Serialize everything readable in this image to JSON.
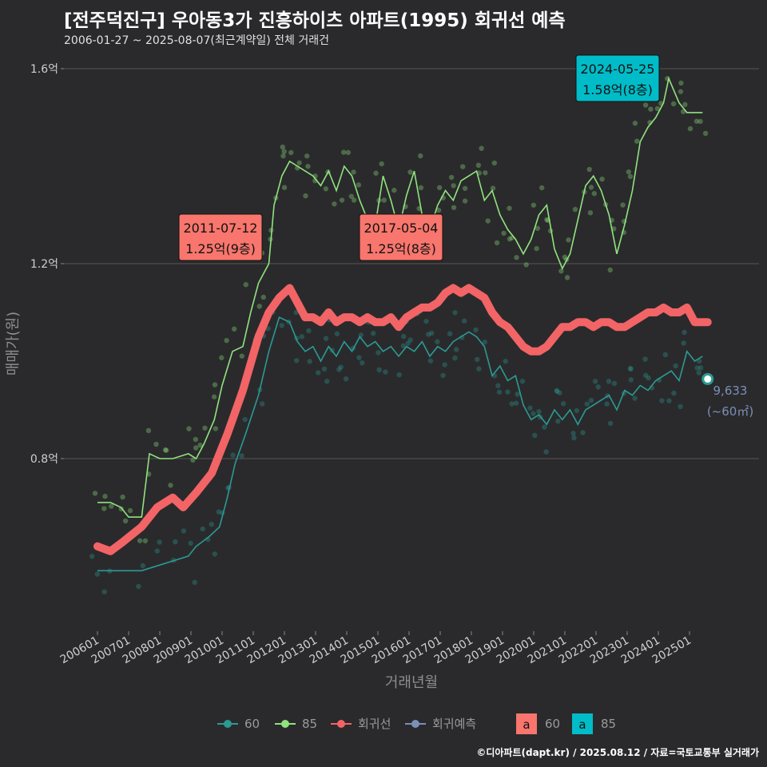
{
  "title": "[전주덕진구] 우아동3가 진흥하이츠 아파트(1995) 회귀선 예측",
  "subtitle": "2006-01-27 ~ 2025-08-07(최근계약일) 전체 거래건",
  "credit": "©디아파트(dapt.kr) / 2025.08.12 / 자료=국토교통부 실거래가",
  "colors": {
    "background": "#2a2a2c",
    "grid": "#555555",
    "s60": "#2b9a94",
    "s85": "#90e37e",
    "regression": "#f26466",
    "forecast": "#7b8fb8",
    "label60": "#f8766d",
    "label85": "#00bcc8"
  },
  "chart_data": {
    "type": "line",
    "title": "[전주덕진구] 우아동3가 진흥하이츠 아파트(1995) 회귀선 예측",
    "xlabel": "거래년월",
    "ylabel": "매매가(원)",
    "x_range": [
      "2006-01",
      "2025-08"
    ],
    "ylim": [
      0.43,
      1.7
    ],
    "y_ticks": [
      {
        "value": 0.8,
        "label": "0.8억"
      },
      {
        "value": 1.2,
        "label": "1.2억"
      },
      {
        "value": 1.6,
        "label": "1.6억"
      }
    ],
    "x_ticks": [
      "200601",
      "200701",
      "200801",
      "200901",
      "201001",
      "201101",
      "201201",
      "201301",
      "201401",
      "201501",
      "201601",
      "201701",
      "201801",
      "201901",
      "202001",
      "202101",
      "202201",
      "202301",
      "202401",
      "202501"
    ],
    "grid": true,
    "legend_position": "bottom",
    "series": [
      {
        "name": "60",
        "points": [
          [
            "2006-01",
            0.57
          ],
          [
            "2006-06",
            0.57
          ],
          [
            "2007-06",
            0.57
          ],
          [
            "2007-12",
            0.58
          ],
          [
            "2008-06",
            0.59
          ],
          [
            "2008-12",
            0.6
          ],
          [
            "2009-03",
            0.62
          ],
          [
            "2009-08",
            0.64
          ],
          [
            "2009-12",
            0.66
          ],
          [
            "2010-03",
            0.72
          ],
          [
            "2010-06",
            0.79
          ],
          [
            "2010-10",
            0.85
          ],
          [
            "2011-03",
            0.93
          ],
          [
            "2011-07",
            1.02
          ],
          [
            "2011-11",
            1.09
          ],
          [
            "2012-03",
            1.08
          ],
          [
            "2012-06",
            1.04
          ],
          [
            "2012-09",
            1.02
          ],
          [
            "2012-12",
            1.03
          ],
          [
            "2013-03",
            1.0
          ],
          [
            "2013-06",
            1.03
          ],
          [
            "2013-09",
            1.01
          ],
          [
            "2013-12",
            1.04
          ],
          [
            "2014-03",
            1.02
          ],
          [
            "2014-06",
            1.05
          ],
          [
            "2014-09",
            1.03
          ],
          [
            "2014-12",
            1.04
          ],
          [
            "2015-03",
            1.02
          ],
          [
            "2015-06",
            1.03
          ],
          [
            "2015-09",
            1.01
          ],
          [
            "2015-12",
            1.03
          ],
          [
            "2016-03",
            1.02
          ],
          [
            "2016-06",
            1.04
          ],
          [
            "2016-09",
            1.01
          ],
          [
            "2016-12",
            1.03
          ],
          [
            "2017-03",
            1.02
          ],
          [
            "2017-06",
            1.04
          ],
          [
            "2017-09",
            1.05
          ],
          [
            "2017-12",
            1.06
          ],
          [
            "2018-03",
            1.05
          ],
          [
            "2018-06",
            1.03
          ],
          [
            "2018-09",
            0.97
          ],
          [
            "2018-12",
            0.99
          ],
          [
            "2019-03",
            0.96
          ],
          [
            "2019-06",
            0.97
          ],
          [
            "2019-09",
            0.91
          ],
          [
            "2019-12",
            0.88
          ],
          [
            "2020-03",
            0.89
          ],
          [
            "2020-06",
            0.87
          ],
          [
            "2020-09",
            0.9
          ],
          [
            "2020-12",
            0.88
          ],
          [
            "2021-03",
            0.9
          ],
          [
            "2021-06",
            0.87
          ],
          [
            "2021-09",
            0.9
          ],
          [
            "2021-12",
            0.91
          ],
          [
            "2022-03",
            0.92
          ],
          [
            "2022-06",
            0.93
          ],
          [
            "2022-09",
            0.9
          ],
          [
            "2022-12",
            0.94
          ],
          [
            "2023-03",
            0.93
          ],
          [
            "2023-06",
            0.95
          ],
          [
            "2023-09",
            0.94
          ],
          [
            "2023-12",
            0.96
          ],
          [
            "2024-03",
            0.97
          ],
          [
            "2024-06",
            0.98
          ],
          [
            "2024-09",
            0.96
          ],
          [
            "2024-12",
            1.02
          ],
          [
            "2025-03",
            1.0
          ],
          [
            "2025-06",
            1.01
          ]
        ]
      },
      {
        "name": "85",
        "points": [
          [
            "2006-01",
            0.71
          ],
          [
            "2006-06",
            0.71
          ],
          [
            "2006-10",
            0.7
          ],
          [
            "2007-01",
            0.68
          ],
          [
            "2007-06",
            0.68
          ],
          [
            "2007-09",
            0.81
          ],
          [
            "2008-01",
            0.8
          ],
          [
            "2008-06",
            0.8
          ],
          [
            "2008-12",
            0.81
          ],
          [
            "2009-03",
            0.8
          ],
          [
            "2009-06",
            0.83
          ],
          [
            "2009-10",
            0.88
          ],
          [
            "2010-01",
            0.95
          ],
          [
            "2010-05",
            1.02
          ],
          [
            "2010-09",
            1.03
          ],
          [
            "2010-12",
            1.1
          ],
          [
            "2011-03",
            1.16
          ],
          [
            "2011-07",
            1.2
          ],
          [
            "2011-09",
            1.32
          ],
          [
            "2011-12",
            1.38
          ],
          [
            "2012-03",
            1.41
          ],
          [
            "2012-06",
            1.4
          ],
          [
            "2012-09",
            1.39
          ],
          [
            "2012-12",
            1.38
          ],
          [
            "2013-03",
            1.36
          ],
          [
            "2013-06",
            1.39
          ],
          [
            "2013-09",
            1.35
          ],
          [
            "2013-12",
            1.4
          ],
          [
            "2014-03",
            1.38
          ],
          [
            "2014-06",
            1.33
          ],
          [
            "2014-09",
            1.29
          ],
          [
            "2014-12",
            1.28
          ],
          [
            "2015-03",
            1.38
          ],
          [
            "2015-06",
            1.33
          ],
          [
            "2015-09",
            1.27
          ],
          [
            "2015-12",
            1.34
          ],
          [
            "2016-03",
            1.39
          ],
          [
            "2016-06",
            1.3
          ],
          [
            "2016-09",
            1.27
          ],
          [
            "2016-12",
            1.32
          ],
          [
            "2017-03",
            1.35
          ],
          [
            "2017-06",
            1.33
          ],
          [
            "2017-09",
            1.37
          ],
          [
            "2017-12",
            1.38
          ],
          [
            "2018-03",
            1.39
          ],
          [
            "2018-06",
            1.33
          ],
          [
            "2018-09",
            1.35
          ],
          [
            "2018-12",
            1.3
          ],
          [
            "2019-03",
            1.27
          ],
          [
            "2019-06",
            1.25
          ],
          [
            "2019-09",
            1.22
          ],
          [
            "2019-12",
            1.25
          ],
          [
            "2020-03",
            1.3
          ],
          [
            "2020-06",
            1.32
          ],
          [
            "2020-09",
            1.23
          ],
          [
            "2020-12",
            1.19
          ],
          [
            "2021-03",
            1.22
          ],
          [
            "2021-06",
            1.29
          ],
          [
            "2021-09",
            1.36
          ],
          [
            "2021-12",
            1.38
          ],
          [
            "2022-03",
            1.35
          ],
          [
            "2022-06",
            1.3
          ],
          [
            "2022-09",
            1.22
          ],
          [
            "2022-12",
            1.28
          ],
          [
            "2023-03",
            1.35
          ],
          [
            "2023-06",
            1.45
          ],
          [
            "2023-09",
            1.48
          ],
          [
            "2023-12",
            1.5
          ],
          [
            "2024-03",
            1.53
          ],
          [
            "2024-05",
            1.58
          ],
          [
            "2024-09",
            1.53
          ],
          [
            "2024-12",
            1.51
          ],
          [
            "2025-03",
            1.51
          ],
          [
            "2025-06",
            1.51
          ]
        ]
      },
      {
        "name": "회귀선",
        "points": [
          [
            "2006-01",
            0.62
          ],
          [
            "2006-06",
            0.61
          ],
          [
            "2006-11",
            0.63
          ],
          [
            "2007-06",
            0.66
          ],
          [
            "2007-12",
            0.7
          ],
          [
            "2008-06",
            0.72
          ],
          [
            "2008-10",
            0.7
          ],
          [
            "2009-03",
            0.73
          ],
          [
            "2009-09",
            0.77
          ],
          [
            "2010-03",
            0.85
          ],
          [
            "2010-09",
            0.94
          ],
          [
            "2011-03",
            1.05
          ],
          [
            "2011-07",
            1.1
          ],
          [
            "2011-11",
            1.13
          ],
          [
            "2012-03",
            1.15
          ],
          [
            "2012-06",
            1.12
          ],
          [
            "2012-09",
            1.09
          ],
          [
            "2012-12",
            1.09
          ],
          [
            "2013-03",
            1.08
          ],
          [
            "2013-06",
            1.1
          ],
          [
            "2013-09",
            1.08
          ],
          [
            "2013-12",
            1.09
          ],
          [
            "2014-03",
            1.09
          ],
          [
            "2014-06",
            1.08
          ],
          [
            "2014-09",
            1.09
          ],
          [
            "2014-12",
            1.08
          ],
          [
            "2015-03",
            1.08
          ],
          [
            "2015-06",
            1.09
          ],
          [
            "2015-09",
            1.07
          ],
          [
            "2015-12",
            1.09
          ],
          [
            "2016-03",
            1.1
          ],
          [
            "2016-06",
            1.11
          ],
          [
            "2016-09",
            1.11
          ],
          [
            "2016-12",
            1.12
          ],
          [
            "2017-03",
            1.14
          ],
          [
            "2017-06",
            1.15
          ],
          [
            "2017-09",
            1.14
          ],
          [
            "2017-12",
            1.15
          ],
          [
            "2018-03",
            1.14
          ],
          [
            "2018-06",
            1.13
          ],
          [
            "2018-09",
            1.1
          ],
          [
            "2018-12",
            1.08
          ],
          [
            "2019-03",
            1.07
          ],
          [
            "2019-06",
            1.05
          ],
          [
            "2019-09",
            1.03
          ],
          [
            "2019-12",
            1.02
          ],
          [
            "2020-03",
            1.02
          ],
          [
            "2020-06",
            1.03
          ],
          [
            "2020-09",
            1.05
          ],
          [
            "2020-12",
            1.07
          ],
          [
            "2021-03",
            1.07
          ],
          [
            "2021-06",
            1.08
          ],
          [
            "2021-09",
            1.08
          ],
          [
            "2021-12",
            1.07
          ],
          [
            "2022-03",
            1.08
          ],
          [
            "2022-06",
            1.08
          ],
          [
            "2022-09",
            1.07
          ],
          [
            "2022-12",
            1.07
          ],
          [
            "2023-03",
            1.08
          ],
          [
            "2023-06",
            1.09
          ],
          [
            "2023-09",
            1.1
          ],
          [
            "2023-12",
            1.1
          ],
          [
            "2024-03",
            1.11
          ],
          [
            "2024-06",
            1.1
          ],
          [
            "2024-09",
            1.1
          ],
          [
            "2024-12",
            1.11
          ],
          [
            "2025-03",
            1.08
          ],
          [
            "2025-06",
            1.08
          ],
          [
            "2025-08",
            1.08
          ]
        ]
      },
      {
        "name": "회귀예측",
        "points": [
          [
            "2025-08",
            0.9633
          ]
        ]
      }
    ],
    "annotations": [
      {
        "date": "2011-07-12",
        "price": "1.25억(9층)",
        "series": "60"
      },
      {
        "date": "2017-05-04",
        "price": "1.25억(8층)",
        "series": "60"
      },
      {
        "date": "2024-05-25",
        "price": "1.58억(8층)",
        "series": "85"
      }
    ],
    "forecast_label": {
      "value": "9,633",
      "area": "(~60㎡)"
    }
  },
  "legend": {
    "items": [
      {
        "key": "s60",
        "label": "60"
      },
      {
        "key": "s85",
        "label": "85"
      },
      {
        "key": "regression",
        "label": "회귀선"
      },
      {
        "key": "forecast",
        "label": "회귀예측"
      }
    ],
    "box_items": [
      {
        "glyph": "a",
        "label": "60",
        "color_key": "label60"
      },
      {
        "glyph": "a",
        "label": "85",
        "color_key": "label85"
      }
    ]
  }
}
